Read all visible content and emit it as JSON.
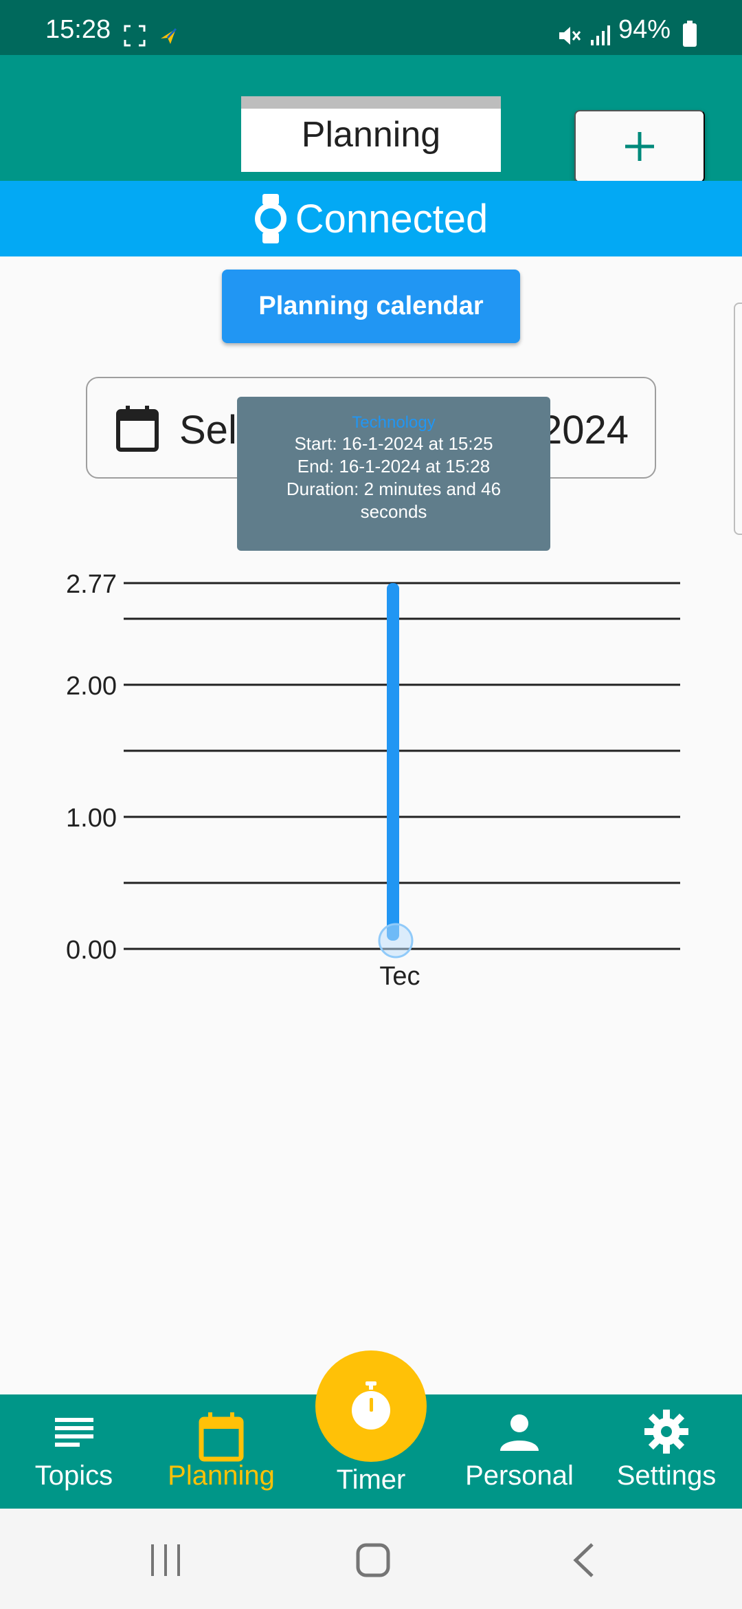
{
  "status_bar": {
    "time": "15:28",
    "battery": "94%",
    "icons": [
      "screenshot-icon",
      "app-notification-icon",
      "mute-icon",
      "signal-icon",
      "battery-icon"
    ]
  },
  "app_bar": {
    "title": "Planning",
    "add_label": "+"
  },
  "connection": {
    "status": "Connected",
    "icon": "watch-icon"
  },
  "planning_calendar_label": "Planning calendar",
  "date_selector": {
    "text": "Sele",
    "year": "2024",
    "icon": "calendar-icon"
  },
  "tooltip": {
    "title": "Technology",
    "start": "Start: 16-1-2024 at 15:25",
    "end": "End: 16-1-2024 at 15:28",
    "duration_line1": "Duration: 2 minutes and 46",
    "duration_line2": "seconds"
  },
  "chart_data": {
    "type": "bar",
    "categories": [
      "Tec"
    ],
    "values": [
      2.77
    ],
    "ylim": [
      0,
      2.77
    ],
    "y_ticks": [
      {
        "value": 0,
        "label": "0.00"
      },
      {
        "value": 1,
        "label": "1.00"
      },
      {
        "value": 2,
        "label": "2.00"
      },
      {
        "value": 2.77,
        "label": "2.77"
      }
    ],
    "y_gridlines": [
      0,
      0.5,
      1,
      1.5,
      2,
      2.5,
      2.77
    ],
    "grid": true,
    "bar_color": "#2196f3"
  },
  "bottom_nav": {
    "items": [
      {
        "label": "Topics",
        "icon": "list-icon",
        "active": false
      },
      {
        "label": "Planning",
        "icon": "calendar-icon",
        "active": true
      },
      {
        "label": "Timer",
        "icon": "stopwatch-icon",
        "active": false
      },
      {
        "label": "Personal",
        "icon": "person-icon",
        "active": false
      },
      {
        "label": "Settings",
        "icon": "gear-icon",
        "active": false
      }
    ],
    "active_color": "#ffc107"
  },
  "system_nav": {
    "icons": [
      "recents-icon",
      "home-icon",
      "back-icon"
    ]
  }
}
